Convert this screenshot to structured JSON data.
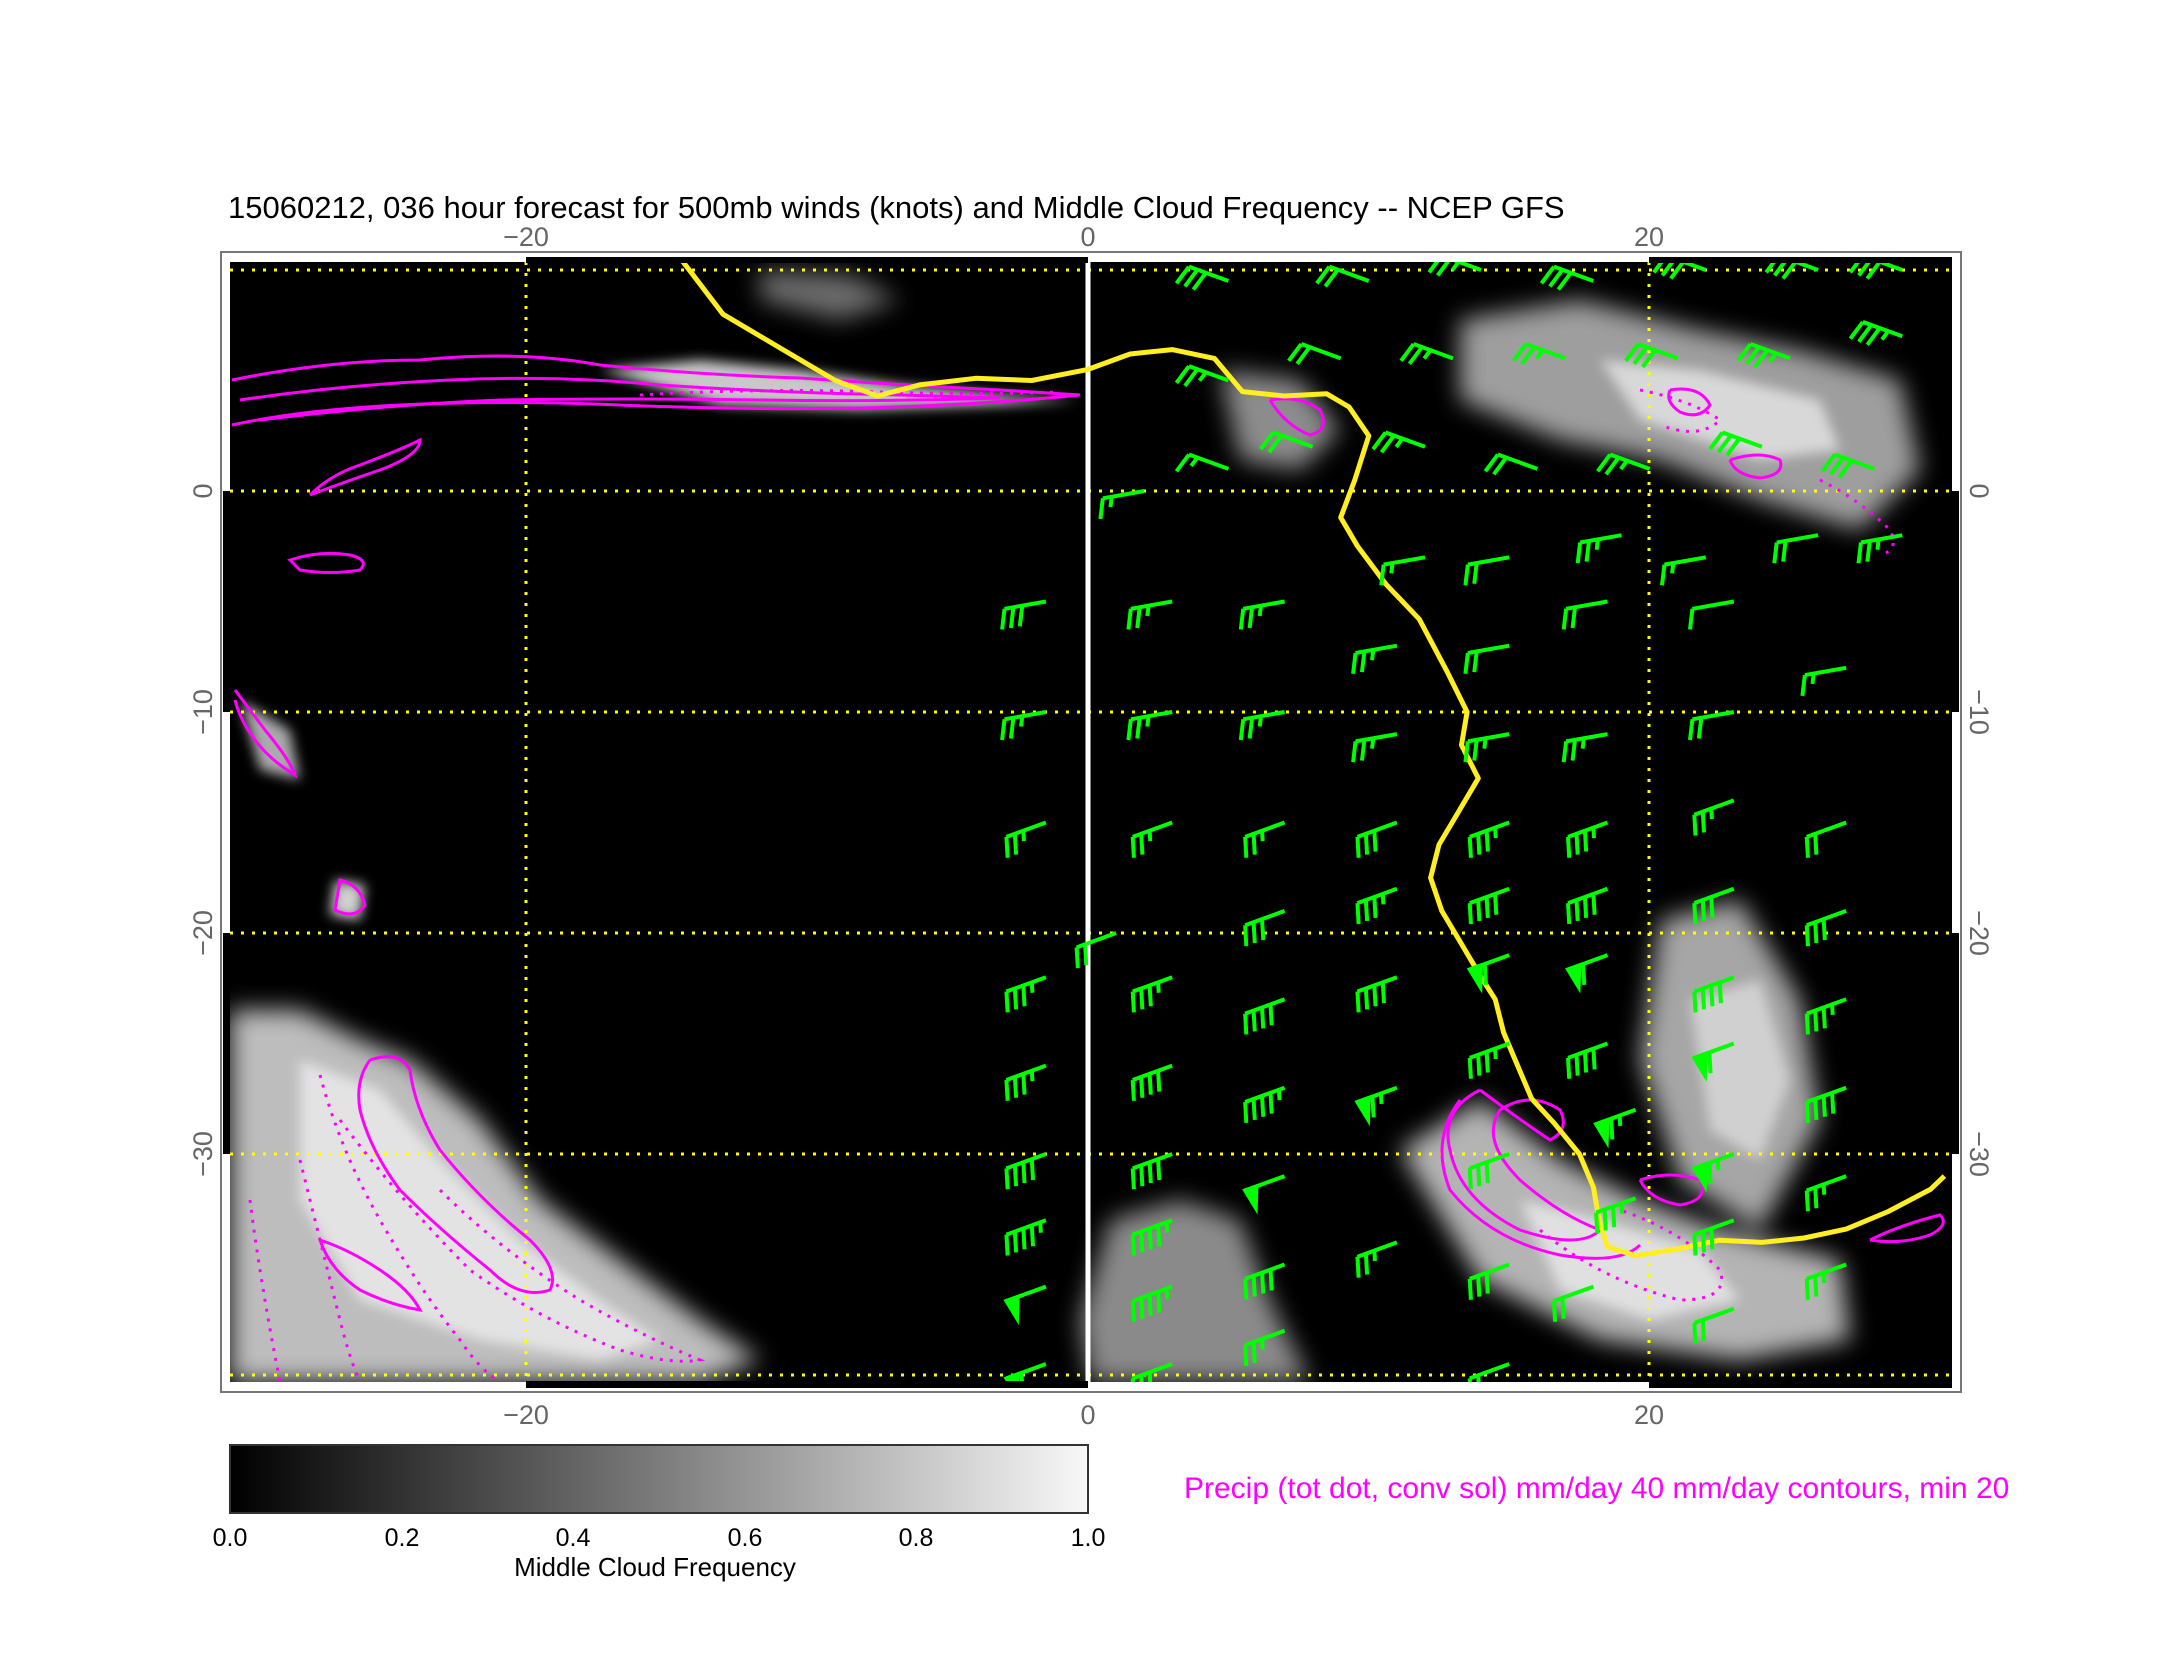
{
  "title": "15060212, 036 hour forecast for 500mb winds (knots) and Middle Cloud Frequency -- NCEP GFS",
  "x_ticks": [
    "−20",
    "0",
    "20"
  ],
  "x_ticks_bottom": [
    "−20",
    "0",
    "20"
  ],
  "y_ticks": [
    "0",
    "−10",
    "−20",
    "−30"
  ],
  "colorbar": {
    "label": "Middle Cloud Frequency",
    "ticks": [
      "0.0",
      "0.2",
      "0.4",
      "0.6",
      "0.8",
      "1.0"
    ],
    "range": [
      0.0,
      1.0
    ]
  },
  "precip_note": "Precip (tot dot, conv sol) mm/day 40 mm/day contours, min 20",
  "colors": {
    "background": "#000000",
    "grid": "#ffff00",
    "coastline": "#ffee22",
    "precip": "#ff00ff",
    "wind_barbs": "#00ff00",
    "prime_meridian": "#ffffff"
  },
  "chart_data": {
    "type": "map",
    "projection": "lon-lat",
    "xlim": [
      -30.5,
      30.5
    ],
    "ylim": [
      -40.5,
      10.5
    ],
    "grid_lons": [
      -20,
      0,
      20
    ],
    "grid_lats": [
      10,
      0,
      -10,
      -20,
      -30,
      -40
    ],
    "coastline": [
      [
        -14.5,
        10.5
      ],
      [
        -13,
        8
      ],
      [
        -11,
        6.5
      ],
      [
        -9,
        5
      ],
      [
        -7.5,
        4.3
      ],
      [
        -6,
        4.8
      ],
      [
        -4,
        5.1
      ],
      [
        -2,
        5
      ],
      [
        0,
        5.5
      ],
      [
        1.5,
        6.2
      ],
      [
        3,
        6.4
      ],
      [
        4.5,
        6
      ],
      [
        5.5,
        4.5
      ],
      [
        7,
        4.3
      ],
      [
        8.5,
        4.4
      ],
      [
        9.3,
        3.8
      ],
      [
        10,
        2.5
      ],
      [
        9.5,
        0.5
      ],
      [
        9,
        -1.2
      ],
      [
        9.6,
        -2.5
      ],
      [
        10.6,
        -4.2
      ],
      [
        11.8,
        -5.8
      ],
      [
        12.8,
        -8.2
      ],
      [
        13.5,
        -10
      ],
      [
        13.3,
        -11.5
      ],
      [
        13.9,
        -13
      ],
      [
        13.2,
        -14.5
      ],
      [
        12.5,
        -16
      ],
      [
        12.2,
        -17.5
      ],
      [
        12.6,
        -19
      ],
      [
        13.3,
        -20.5
      ],
      [
        14,
        -22
      ],
      [
        14.5,
        -23
      ],
      [
        14.8,
        -24.5
      ],
      [
        15.3,
        -26
      ],
      [
        15.8,
        -27.5
      ],
      [
        16.6,
        -28.6
      ],
      [
        17.5,
        -30
      ],
      [
        18,
        -31.5
      ],
      [
        18.2,
        -33
      ],
      [
        18.5,
        -34.2
      ],
      [
        19.5,
        -34.6
      ],
      [
        21,
        -34.3
      ],
      [
        22.5,
        -33.9
      ],
      [
        24,
        -34
      ],
      [
        25.5,
        -33.8
      ],
      [
        27,
        -33.4
      ],
      [
        28.5,
        -32.6
      ],
      [
        30,
        -31.6
      ],
      [
        30.5,
        -31
      ]
    ],
    "wind_barbs": [
      [
        -1.5,
        -5,
        30
      ],
      [
        -1.5,
        -10,
        25
      ],
      [
        -1.5,
        -15,
        25
      ],
      [
        -1.5,
        -22,
        35
      ],
      [
        -1.5,
        -26,
        35
      ],
      [
        -1.5,
        -30,
        40
      ],
      [
        -1.5,
        -33,
        45
      ],
      [
        -1.5,
        -36,
        50
      ],
      [
        -1.5,
        -39.5,
        55
      ],
      [
        3,
        -5,
        25
      ],
      [
        3,
        -10,
        25
      ],
      [
        3,
        -15,
        25
      ],
      [
        3,
        -22,
        35
      ],
      [
        3,
        -26,
        40
      ],
      [
        3,
        -30,
        40
      ],
      [
        3,
        -33,
        45
      ],
      [
        3,
        -36,
        45
      ],
      [
        3,
        -39.5,
        30
      ],
      [
        1,
        -20,
        20
      ],
      [
        7,
        -5,
        25
      ],
      [
        7,
        -10,
        25
      ],
      [
        7,
        -15,
        25
      ],
      [
        7,
        -19,
        30
      ],
      [
        7,
        -23,
        40
      ],
      [
        7,
        -27,
        45
      ],
      [
        7,
        -31,
        50
      ],
      [
        7,
        -35,
        40
      ],
      [
        7,
        -38,
        25
      ],
      [
        11,
        -7,
        25
      ],
      [
        11,
        -11,
        25
      ],
      [
        11,
        -15,
        30
      ],
      [
        11,
        -18,
        35
      ],
      [
        11,
        -22,
        40
      ],
      [
        11,
        -27,
        65
      ],
      [
        11,
        -34,
        25
      ],
      [
        15,
        -7,
        20
      ],
      [
        15,
        -11,
        25
      ],
      [
        15,
        -15,
        35
      ],
      [
        15,
        -18,
        40
      ],
      [
        15,
        -21,
        60
      ],
      [
        15,
        -25,
        35
      ],
      [
        15,
        -30,
        30
      ],
      [
        15,
        -35,
        30
      ],
      [
        15,
        -39.5,
        15
      ],
      [
        18.5,
        -5,
        20
      ],
      [
        18.5,
        -11,
        25
      ],
      [
        18.5,
        -15,
        35
      ],
      [
        18.5,
        -18,
        40
      ],
      [
        18.5,
        -21,
        60
      ],
      [
        18.5,
        -25,
        40
      ],
      [
        19.5,
        -28,
        65
      ],
      [
        19.5,
        -32,
        35
      ],
      [
        18,
        -36,
        20
      ],
      [
        23,
        -5,
        10
      ],
      [
        23,
        -10,
        20
      ],
      [
        23,
        -14,
        25
      ],
      [
        23,
        -18,
        30
      ],
      [
        23,
        -22,
        40
      ],
      [
        23,
        -25,
        60
      ],
      [
        23,
        -30,
        65
      ],
      [
        23,
        -33,
        30
      ],
      [
        23,
        -37,
        20
      ],
      [
        27,
        -8,
        15
      ],
      [
        27,
        -15,
        20
      ],
      [
        27,
        -19,
        30
      ],
      [
        27,
        -23,
        35
      ],
      [
        27,
        -27,
        40
      ],
      [
        27,
        -31,
        25
      ],
      [
        27,
        -35,
        25
      ],
      [
        2,
        0,
        15
      ],
      [
        5,
        1,
        15
      ],
      [
        8,
        2,
        20
      ],
      [
        12,
        2,
        25
      ],
      [
        16,
        1,
        20
      ],
      [
        20,
        1,
        25
      ],
      [
        24,
        2,
        30
      ],
      [
        28,
        1,
        30
      ],
      [
        5,
        5,
        25
      ],
      [
        9,
        6,
        20
      ],
      [
        13,
        6,
        25
      ],
      [
        17,
        6,
        25
      ],
      [
        21,
        6,
        30
      ],
      [
        25,
        6,
        35
      ],
      [
        29,
        7,
        35
      ],
      [
        5,
        9.5,
        30
      ],
      [
        10,
        9.5,
        20
      ],
      [
        14,
        10,
        25
      ],
      [
        18,
        9.5,
        30
      ],
      [
        22,
        10,
        30
      ],
      [
        26,
        10,
        30
      ],
      [
        29,
        10,
        30
      ],
      [
        12,
        -3,
        15
      ],
      [
        15,
        -3,
        20
      ],
      [
        19,
        -2,
        25
      ],
      [
        22,
        -3,
        15
      ],
      [
        26,
        -2,
        20
      ],
      [
        29,
        -2,
        25
      ]
    ]
  }
}
